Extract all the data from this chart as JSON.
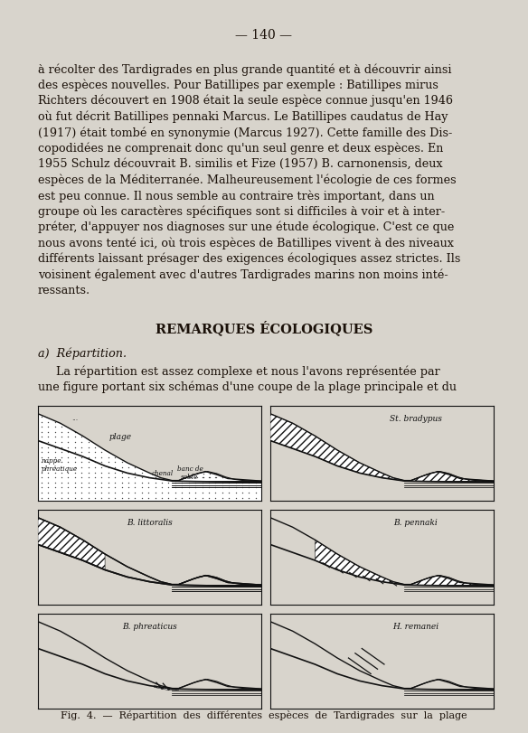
{
  "page_number": "140",
  "bg_color": "#d8d4cc",
  "text_color": "#1a1008",
  "line_color": "#111111",
  "panel_bg": "#d8d4cc",
  "section_title": "REMARQUES ÉCOLOGIQUES",
  "caption": "Fig.  4.  —  Répartition  des  différentes  espèces  de  Tardigrades  sur  la  plage"
}
